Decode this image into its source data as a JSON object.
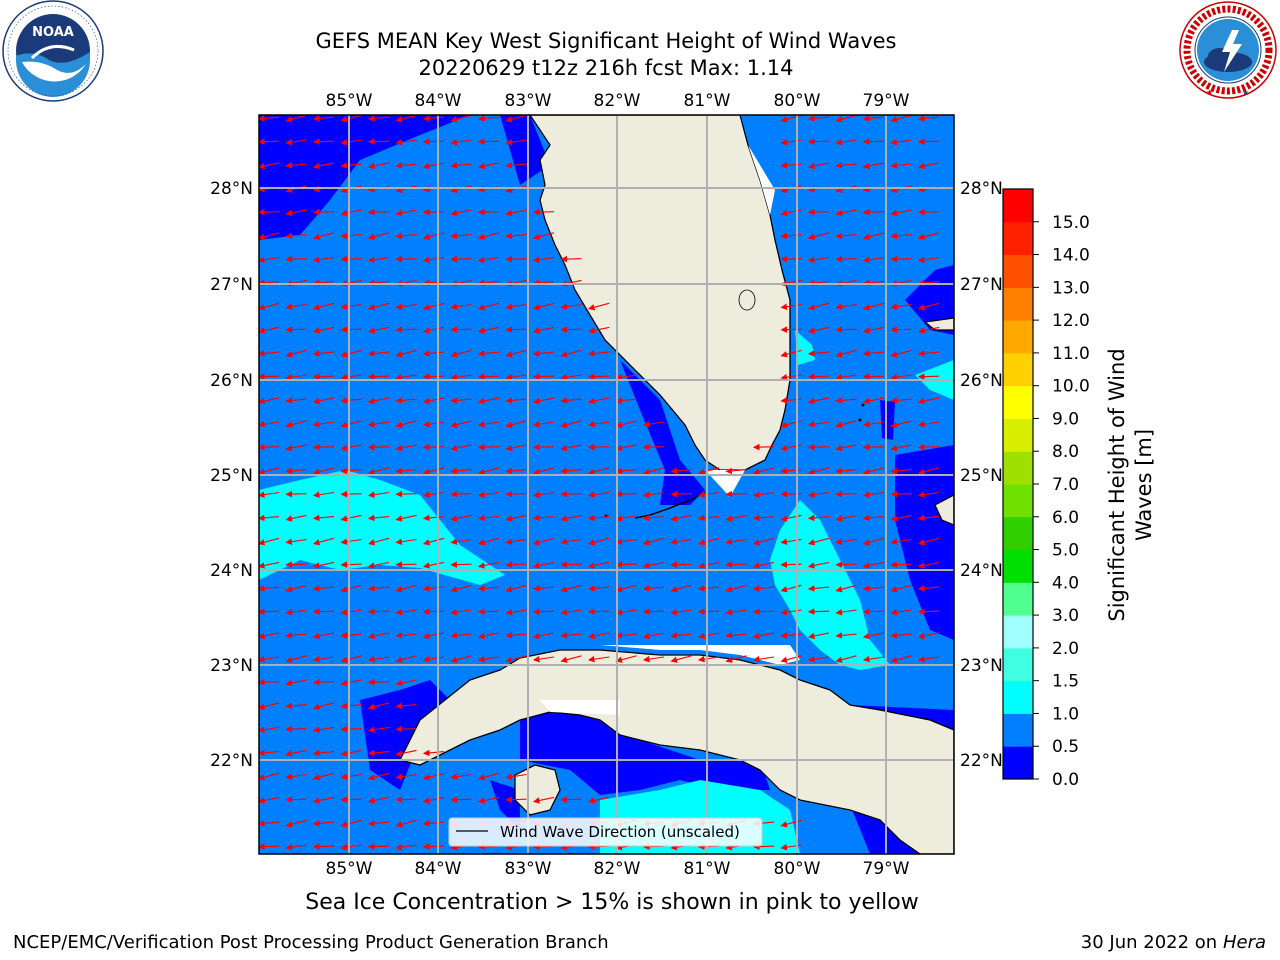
{
  "title": {
    "line1": "GEFS MEAN Key West Significant Height of Wind Waves",
    "line2": "20220629 t12z 216h fcst   Max: 1.14"
  },
  "logos": {
    "left": {
      "icon": "noaa-logo",
      "text": "NOAA",
      "ring_text": "NATIONAL OCEANIC AND ATMOSPHERIC ADMINISTRATION · U.S. DEPARTMENT OF COMMERCE"
    },
    "right": {
      "icon": "national-weather-service-logo",
      "ring_text": "NATIONAL WEATHER SERVICE"
    }
  },
  "map": {
    "lon_labels": [
      "85°W",
      "84°W",
      "83°W",
      "82°W",
      "81°W",
      "80°W",
      "79°W"
    ],
    "lat_labels": [
      "28°N",
      "27°N",
      "26°N",
      "25°N",
      "24°N",
      "23°N",
      "22°N"
    ],
    "legend_label": "Wind Wave Direction (unscaled)",
    "colors": {
      "land": "#eeecdc",
      "coast": "#000000",
      "grid": "#b0b0b0",
      "arrow": "#ff0000",
      "no_data": "#ffffff"
    },
    "wave_direction": "toward west"
  },
  "colorbar": {
    "title_line1": "Significant Height of Wind",
    "title_line2": "Waves [m]",
    "tick_labels": [
      "0.0",
      "0.5",
      "1.0",
      "1.5",
      "2.0",
      "3.0",
      "4.0",
      "5.0",
      "6.0",
      "7.0",
      "8.0",
      "9.0",
      "10.0",
      "11.0",
      "12.0",
      "13.0",
      "14.0",
      "15.0"
    ],
    "colors": [
      "#0000ff",
      "#0080ff",
      "#00ffff",
      "#40ffe0",
      "#a0ffff",
      "#50ff90",
      "#00e000",
      "#30d000",
      "#70e000",
      "#a0e000",
      "#d8f000",
      "#ffff00",
      "#ffd000",
      "#ffa800",
      "#ff8000",
      "#ff5000",
      "#ff2000",
      "#ff0000"
    ]
  },
  "chart_data": {
    "type": "heatmap",
    "title": "GEFS MEAN Key West Significant Height of Wind Waves",
    "subtitle": "20220629 t12z 216h fcst   Max: 1.14",
    "x_ticks": [
      "85°W",
      "84°W",
      "83°W",
      "82°W",
      "81°W",
      "80°W",
      "79°W"
    ],
    "y_ticks": [
      "28°N",
      "27°N",
      "26°N",
      "25°N",
      "24°N",
      "23°N",
      "22°N"
    ],
    "colorbar_range": [
      0.0,
      15.0
    ],
    "max_value": 1.14,
    "dominant_levels": [
      "0.0–0.5",
      "0.5–1.0",
      "1.0–1.5"
    ]
  },
  "notes": {
    "ice": "Sea Ice Concentration > 15% is shown in pink to yellow",
    "footer_left": "NCEP/EMC/Verification Post Processing Product Generation Branch",
    "footer_right_date": "30 Jun 2022 on",
    "footer_right_host": "Hera"
  }
}
